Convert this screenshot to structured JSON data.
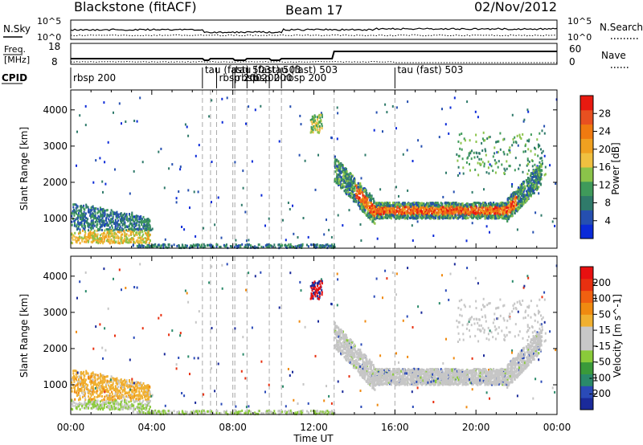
{
  "header": {
    "station": "Blackstone (fitACF)",
    "beam": "Beam 17",
    "date": "02/Nov/2012"
  },
  "strip": {
    "nsky_label": "N.Sky",
    "nsearch_label": "N.Search",
    "noise_top_tick": "10^5",
    "noise_bottom_tick": "10^0",
    "freq_label_1": "Freq.",
    "freq_label_2": "[MHz]",
    "freq_top_tick": "18",
    "freq_bottom_tick": "8",
    "nave_label": "Nave",
    "nave_top_tick": "60",
    "nave_bottom_tick": "0",
    "cpid_label": "CPID",
    "cpid_entries": [
      {
        "text": "rbsp 200",
        "hour": 0.0
      },
      {
        "text": "tau (fast) 503",
        "hour": 6.5
      },
      {
        "text": "rbsp 200",
        "hour": 7.2
      },
      {
        "text": "tau (fast) 503",
        "hour": 8.0
      },
      {
        "text": "rbsp 200",
        "hour": 8.1
      },
      {
        "text": "rbsp 200",
        "hour": 8.7
      },
      {
        "text": "tau (fast) 503",
        "hour": 9.8
      },
      {
        "text": "rbsp 200",
        "hour": 10.4
      },
      {
        "text": "tau (fast) 503",
        "hour": 16.0
      }
    ],
    "change_hours": [
      6.5,
      6.9,
      7.2,
      8.0,
      8.1,
      8.7,
      9.8,
      10.4,
      13.0,
      16.0
    ]
  },
  "chart_data": [
    {
      "type": "heatmap",
      "title": "Power",
      "ylabel": "Slant Range [km]",
      "xlabel": "Time UT",
      "x_ticks": [
        "00:00",
        "04:00",
        "08:00",
        "12:00",
        "16:00",
        "20:00",
        "00:00"
      ],
      "y_ticks": [
        1000,
        2000,
        3000,
        4000
      ],
      "ylim": [
        180,
        4550
      ],
      "xlim_hours": [
        0,
        24
      ],
      "colorbar_label": "Power [dB]",
      "colorbar_ticks": [
        "4",
        "8",
        "12",
        "16",
        "20",
        "24",
        "28"
      ],
      "colorbar_colors": [
        "#0a2ad8",
        "#254fb0",
        "#2f7a6a",
        "#3f9a5a",
        "#8bc34a",
        "#f0c040",
        "#f0a020",
        "#f07a10",
        "#e85020",
        "#e81a10"
      ]
    },
    {
      "type": "heatmap",
      "title": "Velocity",
      "ylabel": "Slant Range [km]",
      "xlabel": "Time UT",
      "x_ticks": [
        "00:00",
        "04:00",
        "08:00",
        "12:00",
        "16:00",
        "20:00",
        "00:00"
      ],
      "y_ticks": [
        1000,
        2000,
        3000,
        4000
      ],
      "ylim": [
        180,
        4550
      ],
      "xlim_hours": [
        0,
        24
      ],
      "colorbar_label": "Velocity [m s^-1]",
      "colorbar_ticks": [
        "200",
        "100",
        "50",
        "15",
        "-15",
        "-50",
        "-100",
        "-200"
      ],
      "colorbar_colors": [
        "#1a2a9a",
        "#2a4ab8",
        "#2a8a6a",
        "#3a9a3a",
        "#8acb3a",
        "#c8c8c8",
        "#c8c8c8",
        "#f0b030",
        "#f08a10",
        "#f06010",
        "#e83010",
        "#e81010"
      ]
    }
  ],
  "footer": {
    "time_label": "Time UT"
  }
}
